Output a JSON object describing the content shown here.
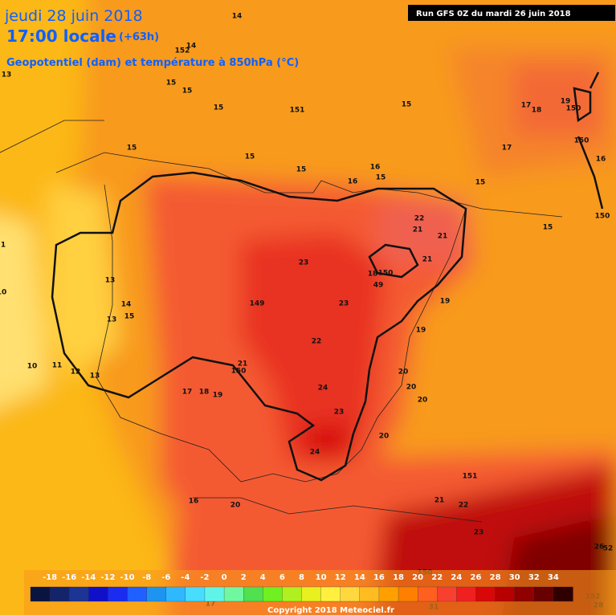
{
  "header": {
    "date": "jeudi 28 juin 2018",
    "time": "17:00 locale",
    "lead": "(+63h)",
    "field": "Geopotentiel (dam) et température à 850hPa (°C)",
    "run": "Run GFS 0Z du mardi 26 juin 2018"
  },
  "map": {
    "contour_labels": [
      14,
      14,
      152,
      13,
      15,
      15,
      15,
      151,
      15,
      17,
      18,
      19,
      150,
      17,
      150,
      16,
      150,
      15,
      15,
      15,
      16,
      15,
      16,
      15,
      22,
      21,
      21,
      15,
      21,
      23,
      150,
      18,
      49,
      13,
      14,
      13,
      15,
      149,
      23,
      19,
      19,
      22,
      10,
      11,
      12,
      13,
      150,
      21,
      20,
      17,
      18,
      19,
      24,
      20,
      20,
      23,
      20,
      24,
      151,
      16,
      20,
      21,
      22,
      23,
      150,
      152,
      26,
      52,
      28,
      17,
      31,
      1,
      10
    ]
  },
  "colorbar": {
    "ticks": [
      -18,
      -16,
      -14,
      -12,
      -10,
      -8,
      -6,
      -4,
      -2,
      0,
      2,
      4,
      6,
      8,
      10,
      12,
      14,
      16,
      18,
      20,
      22,
      24,
      26,
      28,
      30,
      32,
      34
    ],
    "colors": [
      "#0a1440",
      "#14246a",
      "#1c3494",
      "#1010c8",
      "#1a2cf0",
      "#2060ff",
      "#1c94f0",
      "#30b8ff",
      "#48dcff",
      "#60f4e8",
      "#70f8a0",
      "#50e050",
      "#70f020",
      "#b0f020",
      "#e8f020",
      "#fff040",
      "#ffd840",
      "#ffbc20",
      "#ffa000",
      "#ff8000",
      "#ff6020",
      "#f84030",
      "#f02020",
      "#d80808",
      "#b80000",
      "#900000",
      "#680000",
      "#300000"
    ]
  },
  "footer": {
    "copyright": "Copyright 2018 Meteociel.fr"
  }
}
